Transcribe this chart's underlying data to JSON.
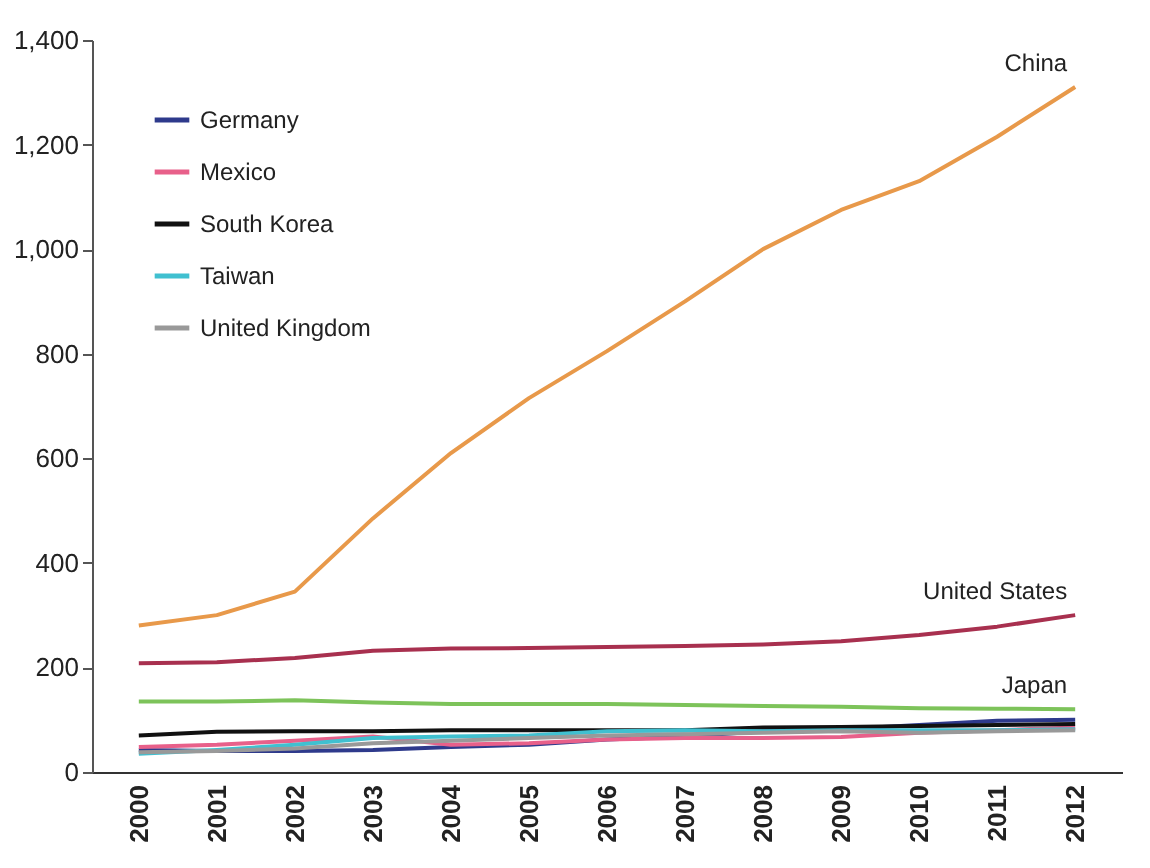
{
  "chart_data": {
    "type": "line",
    "categories": [
      "2000",
      "2001",
      "2002",
      "2003",
      "2004",
      "2005",
      "2006",
      "2007",
      "2008",
      "2009",
      "2010",
      "2011",
      "2012"
    ],
    "series": [
      {
        "name": "China",
        "color": "#e8994a",
        "values": [
          280,
          300,
          345,
          485,
          610,
          715,
          805,
          900,
          1000,
          1075,
          1130,
          1215,
          1310
        ]
      },
      {
        "name": "United States",
        "color": "#a8304f",
        "values": [
          208,
          210,
          218,
          232,
          236,
          237,
          239,
          241,
          244,
          250,
          262,
          278,
          300
        ]
      },
      {
        "name": "Japan",
        "color": "#7dc35a",
        "values": [
          135,
          135,
          137,
          133,
          130,
          130,
          130,
          128,
          126,
          125,
          122,
          121,
          120
        ]
      },
      {
        "name": "Germany",
        "color": "#2e3a8c",
        "values": [
          42,
          40,
          40,
          42,
          48,
          52,
          62,
          68,
          78,
          82,
          90,
          98,
          100
        ]
      },
      {
        "name": "Mexico",
        "color": "#e8608a",
        "values": [
          48,
          52,
          60,
          68,
          52,
          55,
          62,
          65,
          65,
          67,
          75,
          80,
          85
        ]
      },
      {
        "name": "South Korea",
        "color": "#111111",
        "values": [
          70,
          77,
          78,
          78,
          80,
          80,
          80,
          80,
          85,
          86,
          88,
          90,
          92
        ]
      },
      {
        "name": "Taiwan",
        "color": "#40c0d0",
        "values": [
          35,
          42,
          52,
          65,
          68,
          70,
          78,
          80,
          78,
          80,
          80,
          80,
          82
        ]
      },
      {
        "name": "United Kingdom",
        "color": "#999999",
        "values": [
          38,
          40,
          45,
          55,
          60,
          65,
          70,
          72,
          75,
          78,
          75,
          78,
          80
        ]
      }
    ],
    "ylim": [
      0,
      1400
    ],
    "yticks": [
      0,
      {
        "value": 200,
        "label": "200"
      },
      {
        "value": 400,
        "label": "400"
      },
      {
        "value": 600,
        "label": "600"
      },
      {
        "value": 800,
        "label": "800"
      },
      {
        "value": 1000,
        "label": "1,000"
      },
      {
        "value": 1200,
        "label": "1,200"
      },
      {
        "value": 1400,
        "label": "1,400"
      }
    ],
    "grid": false,
    "legend": "top left"
  }
}
